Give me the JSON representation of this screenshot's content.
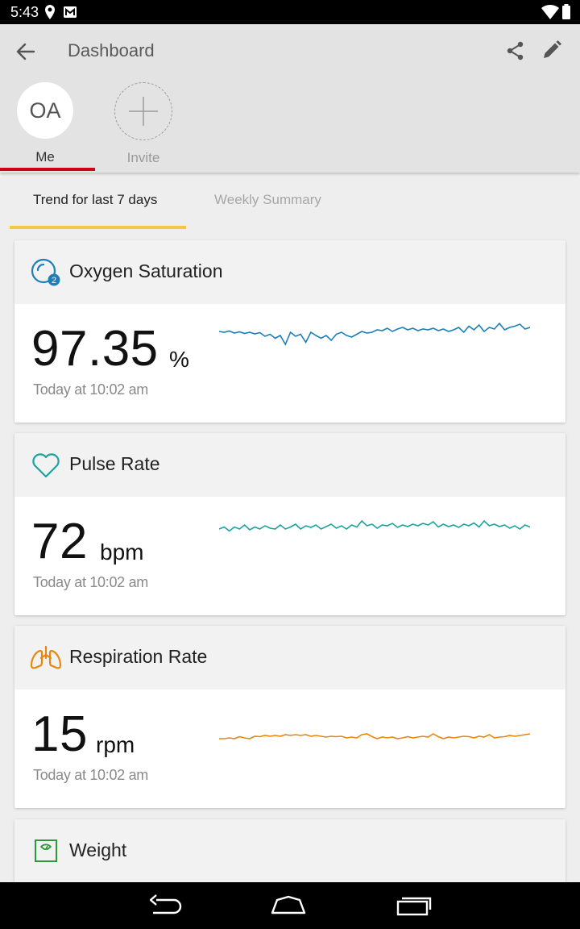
{
  "status_bar": {
    "time": "5:43",
    "icons": [
      "location-icon",
      "gmail-icon",
      "wifi-icon",
      "battery-icon"
    ]
  },
  "header": {
    "title": "Dashboard",
    "back_icon": "arrow-left-icon",
    "share_icon": "share-icon",
    "edit_icon": "pencil-icon"
  },
  "profiles": [
    {
      "initials": "OA",
      "label": "Me",
      "selected": true
    },
    {
      "initials": "",
      "label": "Invite",
      "selected": false
    }
  ],
  "tabs": [
    {
      "label": "Trend for last 7 days",
      "active": true
    },
    {
      "label": "Weekly Summary",
      "active": false
    }
  ],
  "metrics": [
    {
      "title": "Oxygen Saturation",
      "icon": "oxygen-icon",
      "value": "97.35",
      "unit": "%",
      "timestamp": "Today at 10:02 am",
      "color": "#1c7fb8",
      "trend": [
        0.62,
        0.6,
        0.63,
        0.58,
        0.61,
        0.57,
        0.6,
        0.56,
        0.59,
        0.5,
        0.55,
        0.45,
        0.52,
        0.3,
        0.6,
        0.5,
        0.55,
        0.35,
        0.6,
        0.52,
        0.45,
        0.52,
        0.4,
        0.55,
        0.6,
        0.52,
        0.48,
        0.55,
        0.62,
        0.58,
        0.6,
        0.66,
        0.64,
        0.7,
        0.62,
        0.68,
        0.72,
        0.66,
        0.7,
        0.64,
        0.68,
        0.66,
        0.7,
        0.64,
        0.68,
        0.62,
        0.66,
        0.72,
        0.6,
        0.75,
        0.66,
        0.78,
        0.62,
        0.72,
        0.68,
        0.82,
        0.66,
        0.72,
        0.75,
        0.8,
        0.68,
        0.72
      ]
    },
    {
      "title": "Pulse Rate",
      "icon": "heart-icon",
      "value": "72",
      "unit": "bpm",
      "timestamp": "Today at 10:02 am",
      "color": "#1aa3a0",
      "trend": [
        0.5,
        0.55,
        0.45,
        0.55,
        0.5,
        0.6,
        0.48,
        0.55,
        0.5,
        0.58,
        0.52,
        0.5,
        0.6,
        0.5,
        0.55,
        0.62,
        0.5,
        0.58,
        0.54,
        0.6,
        0.5,
        0.56,
        0.62,
        0.52,
        0.58,
        0.5,
        0.6,
        0.55,
        0.7,
        0.58,
        0.62,
        0.52,
        0.6,
        0.58,
        0.64,
        0.54,
        0.6,
        0.56,
        0.62,
        0.58,
        0.64,
        0.6,
        0.68,
        0.55,
        0.62,
        0.56,
        0.6,
        0.54,
        0.62,
        0.58,
        0.65,
        0.55,
        0.7,
        0.58,
        0.62,
        0.56,
        0.6,
        0.52,
        0.58,
        0.5,
        0.6,
        0.55
      ]
    },
    {
      "title": "Respiration Rate",
      "icon": "lungs-icon",
      "value": "15",
      "unit": "rpm",
      "timestamp": "Today at 10:02 am",
      "color": "#e8870e",
      "trend": [
        0.5,
        0.5,
        0.52,
        0.5,
        0.55,
        0.52,
        0.5,
        0.56,
        0.55,
        0.58,
        0.56,
        0.58,
        0.56,
        0.6,
        0.58,
        0.6,
        0.58,
        0.6,
        0.56,
        0.58,
        0.56,
        0.54,
        0.56,
        0.55,
        0.56,
        0.52,
        0.54,
        0.52,
        0.6,
        0.62,
        0.55,
        0.5,
        0.54,
        0.52,
        0.54,
        0.5,
        0.52,
        0.55,
        0.52,
        0.54,
        0.56,
        0.54,
        0.62,
        0.55,
        0.5,
        0.54,
        0.52,
        0.54,
        0.56,
        0.55,
        0.52,
        0.56,
        0.54,
        0.6,
        0.52,
        0.54,
        0.55,
        0.58,
        0.56,
        0.58,
        0.6,
        0.62
      ]
    },
    {
      "title": "Weight",
      "icon": "scale-icon",
      "value": "",
      "unit": "",
      "timestamp": "",
      "color": "#2b9a3a",
      "trend": []
    }
  ],
  "nav_bar": {
    "icons": [
      "back-nav-icon",
      "home-nav-icon",
      "recents-nav-icon"
    ]
  }
}
